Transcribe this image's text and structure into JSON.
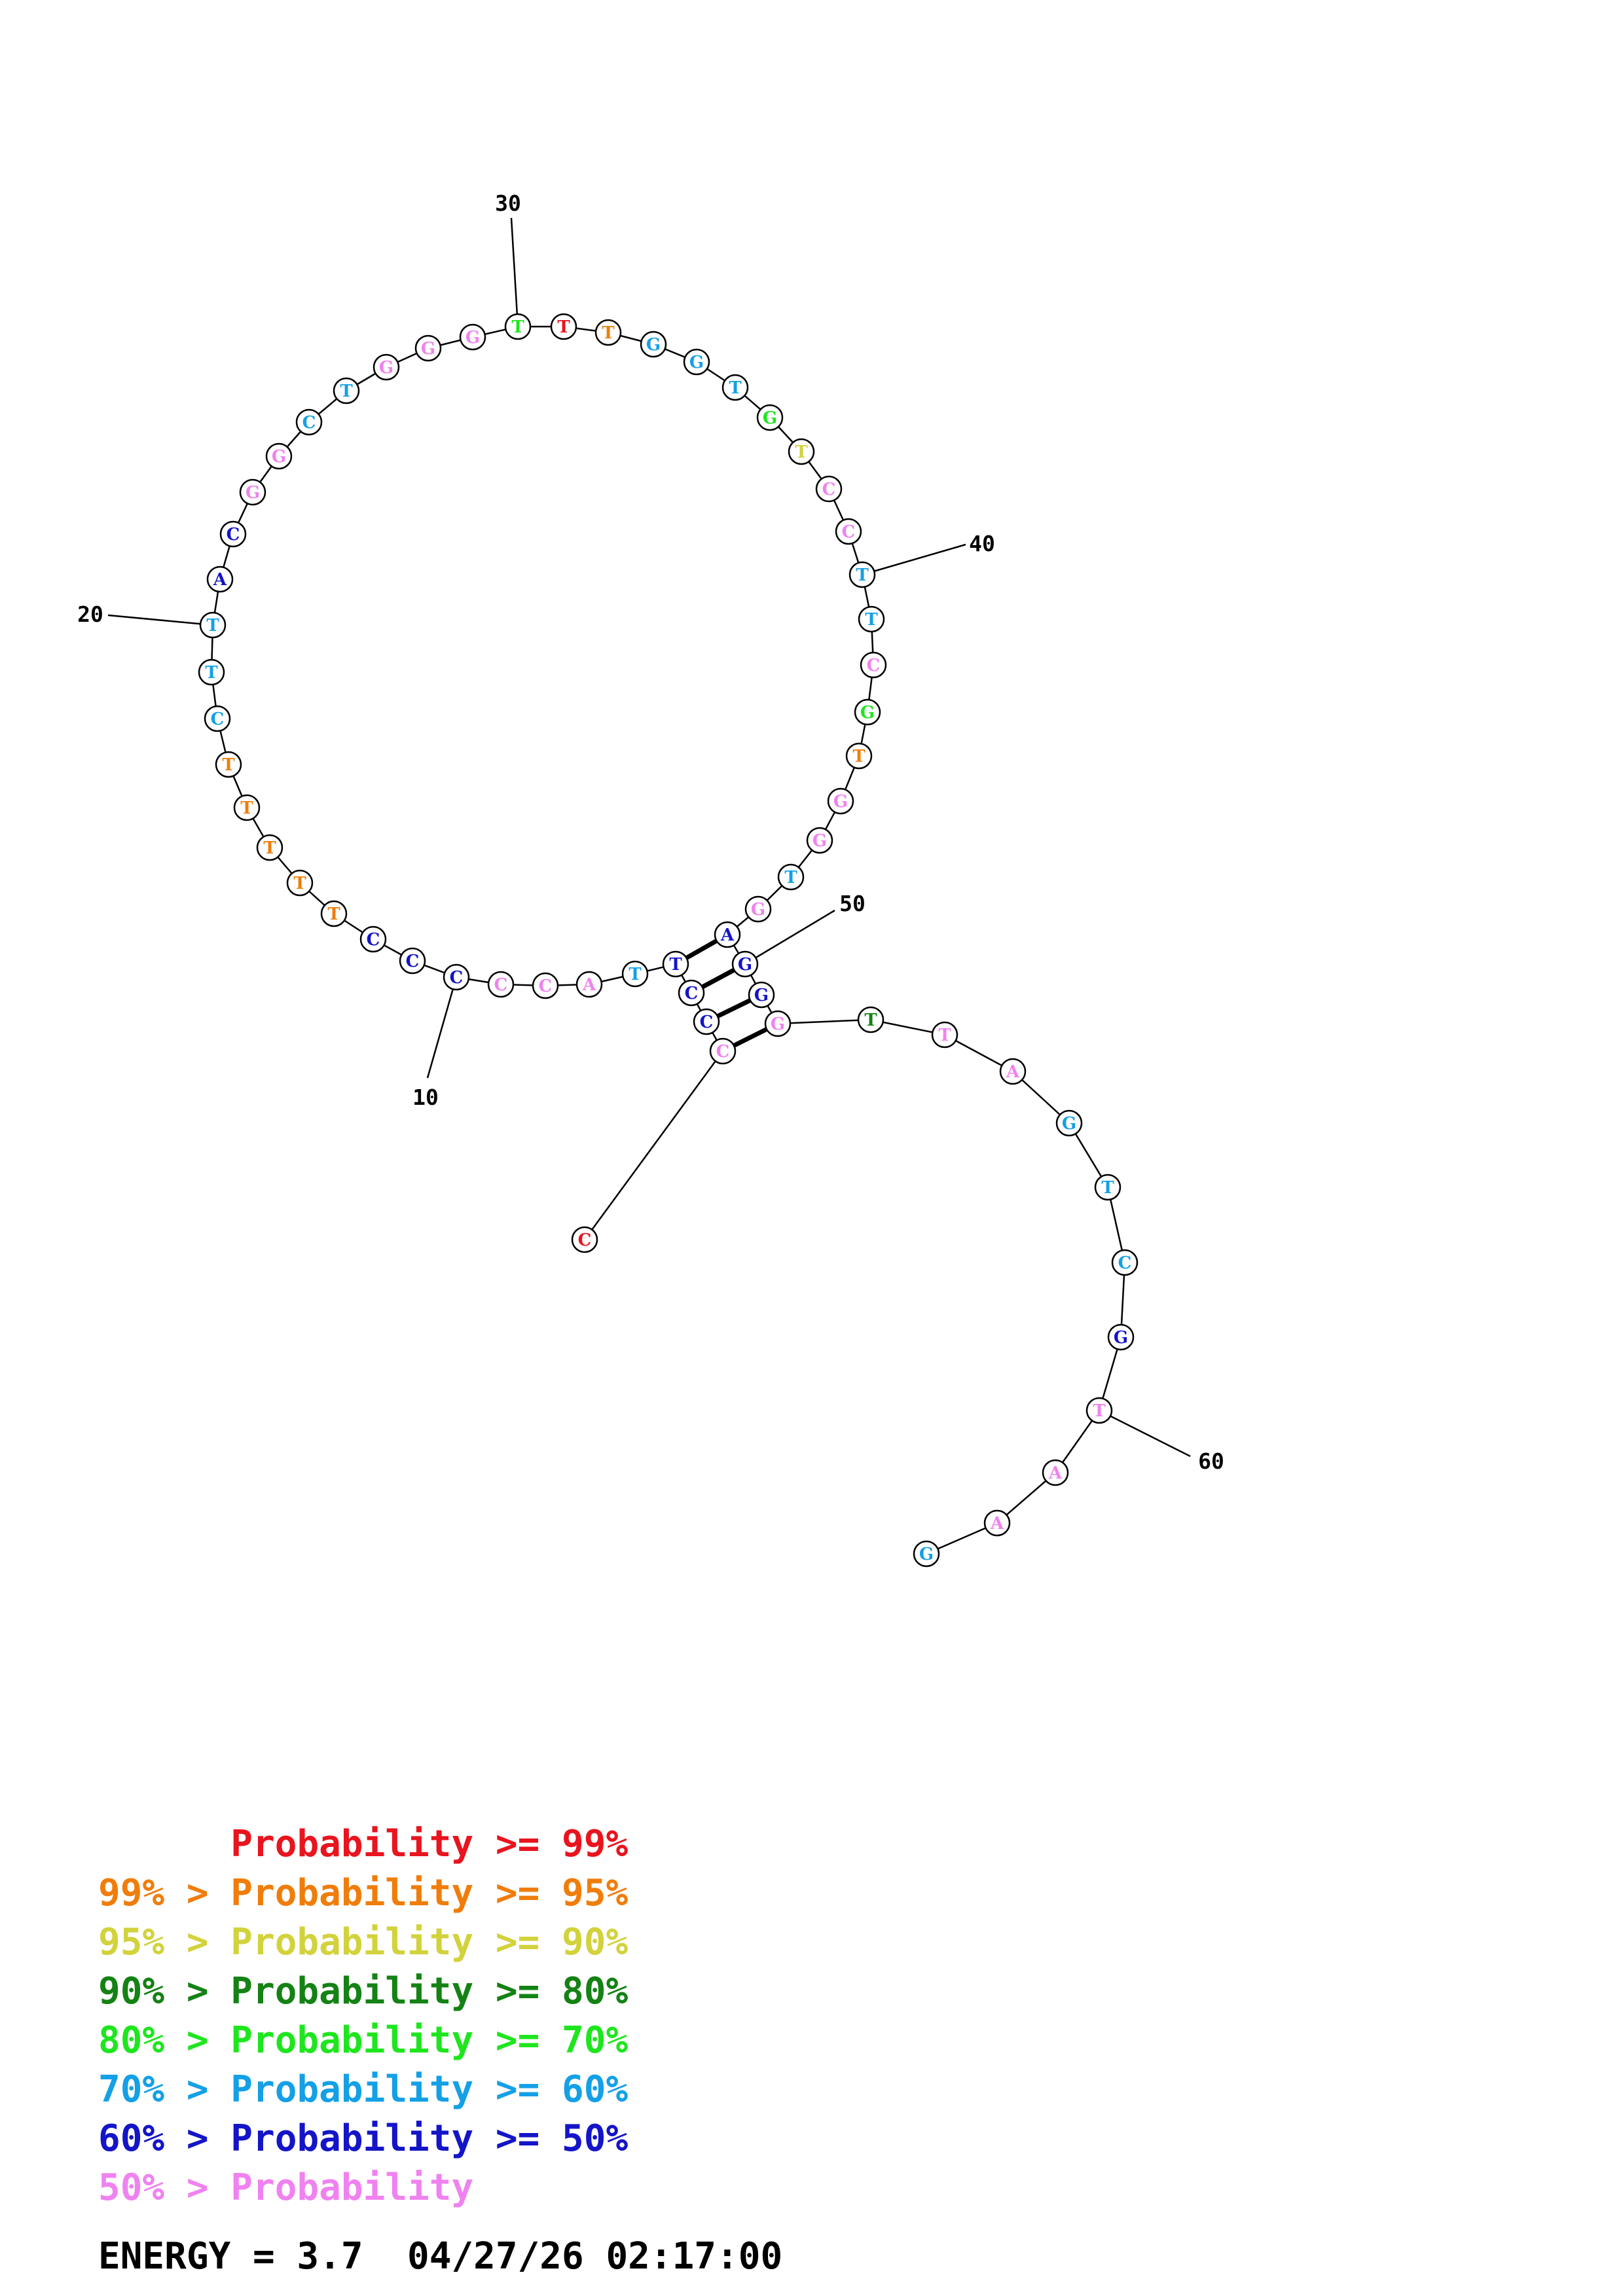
{
  "colors": {
    "p99": "#e8141e",
    "p95": "#f07d0a",
    "p90": "#d2d23c",
    "p80": "#148214",
    "p70": "#1ee61e",
    "p60": "#14a0e6",
    "p50": "#1414c8",
    "p0": "#f082f0"
  },
  "bases": [
    {
      "n": 1,
      "b": "C",
      "c": "p99"
    },
    {
      "n": 2,
      "b": "C",
      "c": "p0"
    },
    {
      "n": 3,
      "b": "C",
      "c": "p50"
    },
    {
      "n": 4,
      "b": "C",
      "c": "p50"
    },
    {
      "n": 5,
      "b": "T",
      "c": "p50"
    },
    {
      "n": 6,
      "b": "T",
      "c": "p60"
    },
    {
      "n": 7,
      "b": "A",
      "c": "p0"
    },
    {
      "n": 8,
      "b": "C",
      "c": "p0"
    },
    {
      "n": 9,
      "b": "C",
      "c": "p0"
    },
    {
      "n": 10,
      "b": "C",
      "c": "p50"
    },
    {
      "n": 11,
      "b": "C",
      "c": "p50"
    },
    {
      "n": 12,
      "b": "C",
      "c": "p50"
    },
    {
      "n": 13,
      "b": "T",
      "c": "p95"
    },
    {
      "n": 14,
      "b": "T",
      "c": "p95"
    },
    {
      "n": 15,
      "b": "T",
      "c": "p95"
    },
    {
      "n": 16,
      "b": "T",
      "c": "p95"
    },
    {
      "n": 17,
      "b": "T",
      "c": "p95"
    },
    {
      "n": 18,
      "b": "C",
      "c": "p60"
    },
    {
      "n": 19,
      "b": "T",
      "c": "p60"
    },
    {
      "n": 20,
      "b": "T",
      "c": "p60"
    },
    {
      "n": 21,
      "b": "A",
      "c": "p50"
    },
    {
      "n": 22,
      "b": "C",
      "c": "p50"
    },
    {
      "n": 23,
      "b": "G",
      "c": "p0"
    },
    {
      "n": 24,
      "b": "G",
      "c": "p0"
    },
    {
      "n": 25,
      "b": "C",
      "c": "p60"
    },
    {
      "n": 26,
      "b": "T",
      "c": "p60"
    },
    {
      "n": 27,
      "b": "G",
      "c": "p0"
    },
    {
      "n": 28,
      "b": "G",
      "c": "p0"
    },
    {
      "n": 29,
      "b": "G",
      "c": "p0"
    },
    {
      "n": 30,
      "b": "T",
      "c": "p70"
    },
    {
      "n": 31,
      "b": "T",
      "c": "p99"
    },
    {
      "n": 32,
      "b": "T",
      "c": "p95"
    },
    {
      "n": 33,
      "b": "G",
      "c": "p60"
    },
    {
      "n": 34,
      "b": "G",
      "c": "p60"
    },
    {
      "n": 35,
      "b": "T",
      "c": "p60"
    },
    {
      "n": 36,
      "b": "G",
      "c": "p70"
    },
    {
      "n": 37,
      "b": "T",
      "c": "p90"
    },
    {
      "n": 38,
      "b": "C",
      "c": "p0"
    },
    {
      "n": 39,
      "b": "C",
      "c": "p0"
    },
    {
      "n": 40,
      "b": "T",
      "c": "p60"
    },
    {
      "n": 41,
      "b": "T",
      "c": "p60"
    },
    {
      "n": 42,
      "b": "C",
      "c": "p0"
    },
    {
      "n": 43,
      "b": "G",
      "c": "p70"
    },
    {
      "n": 44,
      "b": "T",
      "c": "p95"
    },
    {
      "n": 45,
      "b": "G",
      "c": "p0"
    },
    {
      "n": 46,
      "b": "G",
      "c": "p0"
    },
    {
      "n": 47,
      "b": "T",
      "c": "p60"
    },
    {
      "n": 48,
      "b": "G",
      "c": "p0"
    },
    {
      "n": 49,
      "b": "A",
      "c": "p50"
    },
    {
      "n": 50,
      "b": "G",
      "c": "p50"
    },
    {
      "n": 51,
      "b": "G",
      "c": "p50"
    },
    {
      "n": 52,
      "b": "G",
      "c": "p0"
    },
    {
      "n": 53,
      "b": "T",
      "c": "p80"
    },
    {
      "n": 54,
      "b": "T",
      "c": "p0"
    },
    {
      "n": 55,
      "b": "A",
      "c": "p0"
    },
    {
      "n": 56,
      "b": "G",
      "c": "p60"
    },
    {
      "n": 57,
      "b": "T",
      "c": "p60"
    },
    {
      "n": 58,
      "b": "C",
      "c": "p60"
    },
    {
      "n": 59,
      "b": "G",
      "c": "p50"
    },
    {
      "n": 60,
      "b": "T",
      "c": "p0"
    },
    {
      "n": 61,
      "b": "A",
      "c": "p0"
    },
    {
      "n": 62,
      "b": "A",
      "c": "p0"
    },
    {
      "n": 63,
      "b": "G",
      "c": "p60"
    }
  ],
  "pairs": [
    [
      2,
      52
    ],
    [
      3,
      51
    ],
    [
      4,
      50
    ],
    [
      5,
      49
    ]
  ],
  "ticks": [
    {
      "base": 10,
      "label": "10"
    },
    {
      "base": 20,
      "label": "20"
    },
    {
      "base": 30,
      "label": "30"
    },
    {
      "base": 40,
      "label": "40"
    },
    {
      "base": 50,
      "label": "50"
    },
    {
      "base": 60,
      "label": "60"
    }
  ],
  "legend": [
    {
      "prefix": "    ",
      "text": "Probability >= 99%",
      "c": "p99"
    },
    {
      "prefix": "99% > ",
      "text": "Probability >= 95%",
      "c": "p95"
    },
    {
      "prefix": "95% > ",
      "text": "Probability >= 90%",
      "c": "p90"
    },
    {
      "prefix": "90% > ",
      "text": "Probability >= 80%",
      "c": "p80"
    },
    {
      "prefix": "80% > ",
      "text": "Probability >= 70%",
      "c": "p70"
    },
    {
      "prefix": "70% > ",
      "text": "Probability >= 60%",
      "c": "p60"
    },
    {
      "prefix": "60% > ",
      "text": "Probability >= 50%",
      "c": "p50"
    },
    {
      "prefix": "50% > ",
      "text": "Probability",
      "c": "p0"
    }
  ],
  "energy": {
    "label": "ENERGY = 3.7",
    "timestamp": "04/27/26 02:17:00"
  }
}
